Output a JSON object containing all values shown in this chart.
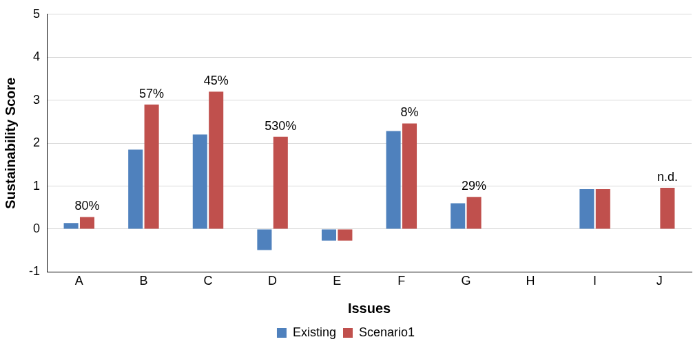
{
  "chart_data": {
    "type": "bar",
    "xlabel": "Issues",
    "ylabel": "Sustainability Score",
    "categories": [
      "A",
      "B",
      "C",
      "D",
      "E",
      "F",
      "G",
      "H",
      "I",
      "J"
    ],
    "series": [
      {
        "name": "Existing",
        "color": "#4f81bd",
        "values": [
          0.14,
          1.85,
          2.2,
          -0.49,
          -0.27,
          2.28,
          0.6,
          null,
          0.93,
          null
        ]
      },
      {
        "name": "Scenario1",
        "color": "#c0504d",
        "values": [
          0.28,
          2.9,
          3.2,
          2.15,
          -0.27,
          2.46,
          0.75,
          null,
          0.93,
          0.96
        ]
      }
    ],
    "ylim": [
      -1,
      5
    ],
    "yticks": [
      -1,
      0,
      1,
      2,
      3,
      4,
      5
    ],
    "grid": "y",
    "legend": "bottom",
    "annotations": [
      {
        "text": "80%",
        "x": "A",
        "y": 0.28
      },
      {
        "text": "57%",
        "x": "B",
        "y": 2.9
      },
      {
        "text": "45%",
        "x": "C",
        "y": 3.2
      },
      {
        "text": "530%",
        "x": "D",
        "y": 2.15
      },
      {
        "text": "8%",
        "x": "F",
        "y": 2.46
      },
      {
        "text": "29%",
        "x": "G",
        "y": 0.75
      },
      {
        "text": "n.d.",
        "x": "J",
        "y": 0.96
      }
    ]
  }
}
